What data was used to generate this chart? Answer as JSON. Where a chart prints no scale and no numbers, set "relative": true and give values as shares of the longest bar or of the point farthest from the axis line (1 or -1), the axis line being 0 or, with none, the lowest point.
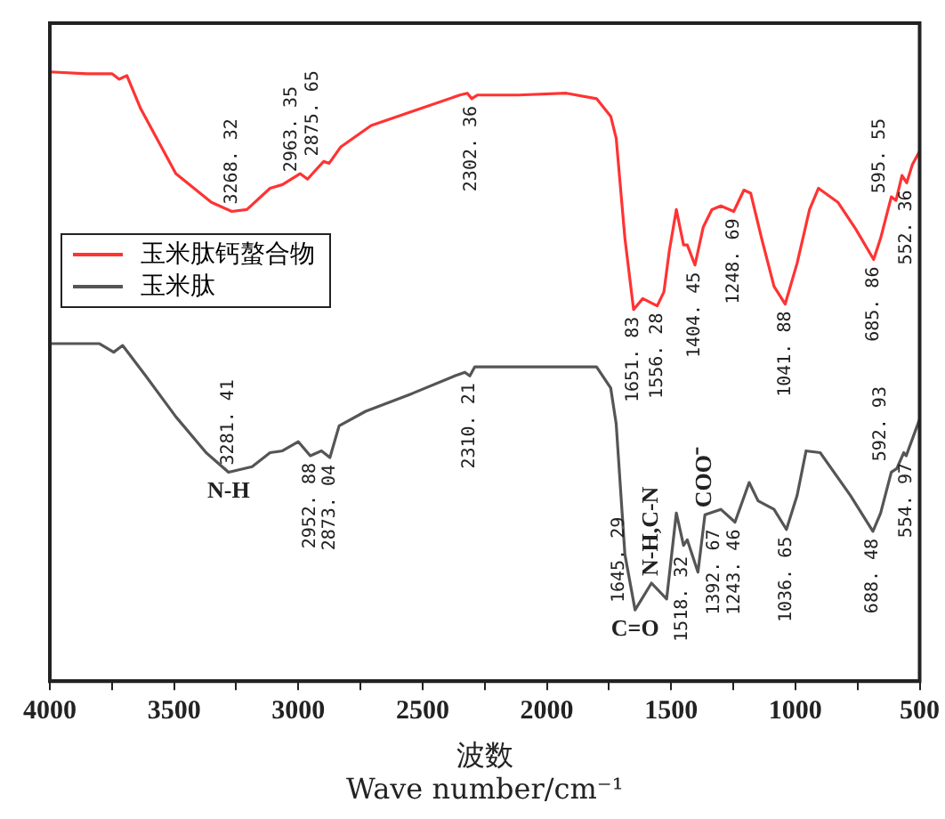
{
  "chart_data": {
    "type": "line",
    "relative": true,
    "xlabel": "波数\nWave number/cm⁻¹",
    "xlim": [
      4000,
      500
    ],
    "xticks": [
      4000,
      {
        "value": 3750,
        "label": null
      },
      3500,
      {
        "value": 3250,
        "label": null
      },
      3000,
      {
        "value": 2750,
        "label": null
      },
      2500,
      {
        "value": 2250,
        "label": null
      },
      2000,
      {
        "value": 1750,
        "label": null
      },
      1500,
      {
        "value": 1250,
        "label": null
      },
      1000,
      {
        "value": 750,
        "label": null
      },
      500
    ],
    "grid": false,
    "legend": "top left",
    "marker": "none",
    "line_style": "solid",
    "series": [
      {
        "name": "玉米肽钙螯合物",
        "color": "#ff3333",
        "x": [
          4000,
          3850,
          3750,
          3721,
          3690,
          3636,
          3493,
          3350,
          3268,
          3207,
          3114,
          3064,
          2993,
          2963,
          2930,
          2898,
          2876,
          2829,
          2707,
          2543,
          2350,
          2320,
          2302,
          2280,
          2114,
          1921,
          1800,
          1743,
          1721,
          1686,
          1651,
          1614,
          1556,
          1529,
          1507,
          1479,
          1450,
          1435,
          1404,
          1371,
          1336,
          1300,
          1248,
          1207,
          1180,
          1136,
          1086,
          1041,
          993,
          943,
          907,
          829,
          757,
          685,
          657,
          614,
          595,
          571,
          552,
          529,
          500
        ],
        "values": [
          1,
          0.997,
          0.997,
          0.988,
          0.994,
          0.941,
          0.833,
          0.786,
          0.771,
          0.774,
          0.809,
          0.815,
          0.833,
          0.824,
          0.839,
          0.853,
          0.85,
          0.877,
          0.912,
          0.935,
          0.962,
          0.965,
          0.956,
          0.962,
          0.962,
          0.965,
          0.956,
          0.927,
          0.891,
          0.727,
          0.61,
          0.628,
          0.616,
          0.639,
          0.707,
          0.774,
          0.716,
          0.716,
          0.683,
          0.745,
          0.774,
          0.78,
          0.771,
          0.806,
          0.801,
          0.727,
          0.648,
          0.619,
          0.686,
          0.774,
          0.809,
          0.786,
          0.742,
          0.692,
          0.727,
          0.795,
          0.789,
          0.83,
          0.818,
          0.848,
          0.87
        ]
      },
      {
        "name": "玉米肽",
        "color": "#555555",
        "x": [
          4000,
          3800,
          3743,
          3707,
          3614,
          3493,
          3371,
          3281,
          3186,
          3114,
          3064,
          3000,
          2952,
          2907,
          2873,
          2836,
          2729,
          2543,
          2371,
          2330,
          2310,
          2290,
          2114,
          1800,
          1743,
          1721,
          1686,
          1645,
          1579,
          1518,
          1479,
          1450,
          1435,
          1392,
          1364,
          1300,
          1243,
          1186,
          1150,
          1086,
          1036,
          993,
          957,
          900,
          779,
          688,
          657,
          614,
          592,
          564,
          554,
          500
        ],
        "values": [
          0.554,
          0.554,
          0.54,
          0.551,
          0.501,
          0.434,
          0.375,
          0.343,
          0.352,
          0.375,
          0.378,
          0.393,
          0.37,
          0.378,
          0.367,
          0.419,
          0.443,
          0.472,
          0.501,
          0.507,
          0.501,
          0.516,
          0.516,
          0.516,
          0.481,
          0.422,
          0.208,
          0.117,
          0.161,
          0.135,
          0.276,
          0.223,
          0.232,
          0.179,
          0.273,
          0.282,
          0.261,
          0.326,
          0.296,
          0.282,
          0.249,
          0.305,
          0.378,
          0.375,
          0.305,
          0.246,
          0.276,
          0.343,
          0.349,
          0.375,
          0.37,
          0.43
        ]
      }
    ],
    "annotations": [
      {
        "text": "3268. 32",
        "x": 3268,
        "y": 0.771
      },
      {
        "text": "2963. 35",
        "x": 2963,
        "y": 0.824
      },
      {
        "text": "2875. 65",
        "x": 2876,
        "y": 0.85
      },
      {
        "text": "2302. 36",
        "x": 2302,
        "y": 0.956
      },
      {
        "text": "1651. 83",
        "x": 1651,
        "y": 0.61
      },
      {
        "text": "1556. 28",
        "x": 1556,
        "y": 0.616
      },
      {
        "text": "1404. 45",
        "x": 1404,
        "y": 0.683
      },
      {
        "text": "1248. 69",
        "x": 1248,
        "y": 0.771
      },
      {
        "text": "1041. 88",
        "x": 1041,
        "y": 0.619
      },
      {
        "text": "685. 86",
        "x": 685,
        "y": 0.692
      },
      {
        "text": "595. 55",
        "x": 595,
        "y": 0.789
      },
      {
        "text": "552. 36",
        "x": 552,
        "y": 0.818
      },
      {
        "text": "3281. 41",
        "x": 3281,
        "y": 0.343
      },
      {
        "text": "2952. 88",
        "x": 2952,
        "y": 0.37
      },
      {
        "text": "2873. 04",
        "x": 2873,
        "y": 0.367
      },
      {
        "text": "2310. 21",
        "x": 2310,
        "y": 0.501
      },
      {
        "text": "1645. 29",
        "x": 1645,
        "y": 0.117
      },
      {
        "text": "1518. 32",
        "x": 1518,
        "y": 0.135
      },
      {
        "text": "1392. 67",
        "x": 1392,
        "y": 0.179
      },
      {
        "text": "1243. 46",
        "x": 1243,
        "y": 0.261
      },
      {
        "text": "1036. 65",
        "x": 1036,
        "y": 0.249
      },
      {
        "text": "688. 48",
        "x": 688,
        "y": 0.246
      },
      {
        "text": "592. 93",
        "x": 592,
        "y": 0.349
      },
      {
        "text": "554. 97",
        "x": 554,
        "y": 0.37
      },
      {
        "text": "N-H",
        "x": 3281,
        "y": 0.343
      },
      {
        "text": "C=O",
        "x": 1645,
        "y": 0.117
      },
      {
        "text": "N-H,C-N",
        "x": 1579,
        "y": 0.161
      },
      {
        "text": "COO⁻",
        "x": 1364,
        "y": 0.273
      }
    ]
  }
}
